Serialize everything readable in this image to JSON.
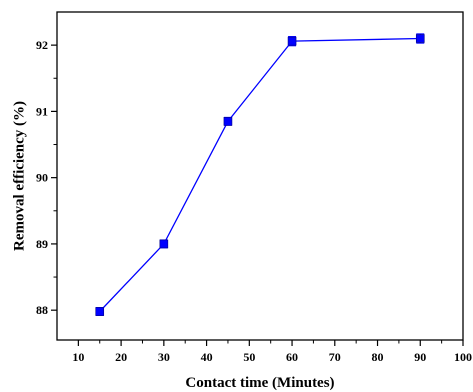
{
  "chart_data": {
    "type": "line",
    "title": "",
    "xlabel": "Contact time (Minutes)",
    "ylabel": "Removal efficiency (%)",
    "xlim": [
      5,
      100
    ],
    "ylim": [
      87.55,
      92.5
    ],
    "x_ticks": [
      "10",
      "20",
      "30",
      "40",
      "50",
      "60",
      "70",
      "80",
      "90",
      "100"
    ],
    "y_ticks": [
      "88",
      "89",
      "90",
      "91",
      "92"
    ],
    "grid": false,
    "legend": "none",
    "series": [
      {
        "color": "#0000ff",
        "marker": "square",
        "x": [
          15,
          30,
          45,
          60,
          90
        ],
        "y": [
          87.98,
          89.0,
          90.85,
          92.06,
          92.1
        ],
        "error": [
          0.06,
          0.06,
          0.06,
          0.07,
          0.07
        ]
      }
    ]
  }
}
